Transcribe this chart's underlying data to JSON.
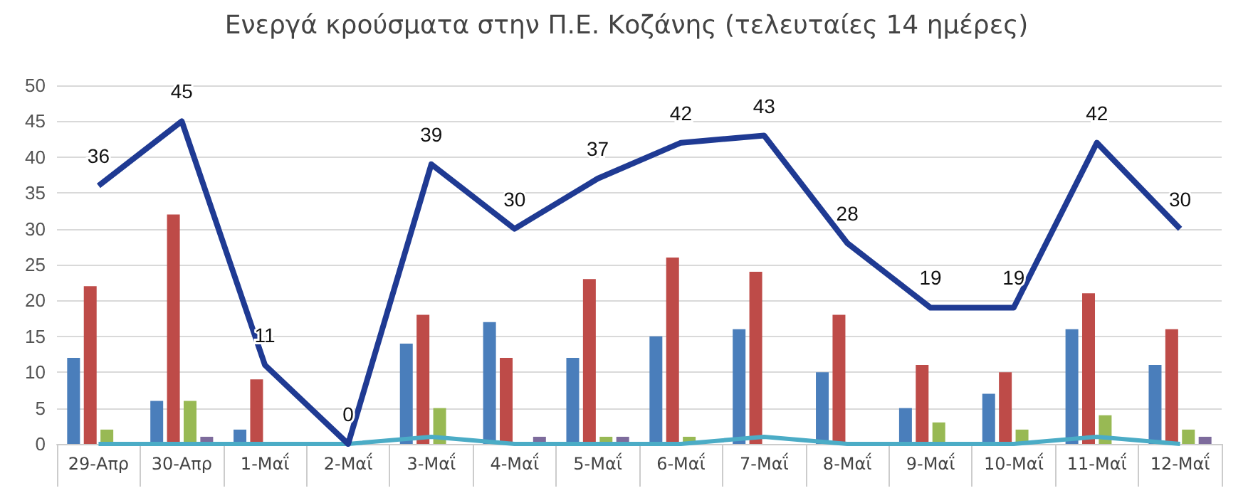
{
  "chart_data": {
    "type": "bar",
    "title": "Ενεργά κρούσματα στην Π.Ε. Κοζάνης (τελευταίες 14 ημέρες)",
    "categories": [
      "29-Απρ",
      "30-Απρ",
      "1-Μαΐ",
      "2-Μαΐ",
      "3-Μαΐ",
      "4-Μαΐ",
      "5-Μαΐ",
      "6-Μαΐ",
      "7-Μαΐ",
      "8-Μαΐ",
      "9-Μαΐ",
      "10-Μαΐ",
      "11-Μαΐ",
      "12-Μαΐ"
    ],
    "series": [
      {
        "color": "#4a7ebb",
        "values": [
          12,
          6,
          2,
          0,
          14,
          17,
          12,
          15,
          16,
          10,
          5,
          7,
          16,
          11
        ]
      },
      {
        "color": "#be4b48",
        "values": [
          22,
          32,
          9,
          0,
          18,
          12,
          23,
          26,
          24,
          18,
          11,
          10,
          21,
          16
        ]
      },
      {
        "color": "#98b954",
        "values": [
          2,
          6,
          0,
          0,
          5,
          0,
          1,
          1,
          0,
          0,
          3,
          2,
          4,
          2
        ]
      },
      {
        "color": "#7d6b9c",
        "values": [
          0,
          1,
          0,
          0,
          0,
          1,
          1,
          0,
          null,
          0,
          0,
          0,
          null,
          1
        ]
      },
      {
        "type": "line",
        "color": "#4bacc6",
        "values": [
          0,
          0,
          0,
          0,
          1,
          0,
          0,
          0,
          1,
          0,
          0,
          0,
          1,
          0
        ]
      },
      {
        "type": "line",
        "color": "#1f3a93",
        "values": [
          36,
          45,
          11,
          0,
          39,
          30,
          37,
          42,
          43,
          28,
          19,
          19,
          42,
          30
        ],
        "value_labels": [
          "36",
          "45",
          "11",
          "0",
          "39",
          "30",
          "37",
          "42",
          "43",
          "28",
          "19",
          "19",
          "42",
          "30"
        ]
      }
    ],
    "ylim": [
      0,
      50
    ],
    "yticks": [
      0,
      5,
      10,
      15,
      20,
      25,
      30,
      35,
      40,
      45,
      50
    ],
    "grid": "y",
    "marker": "none"
  }
}
